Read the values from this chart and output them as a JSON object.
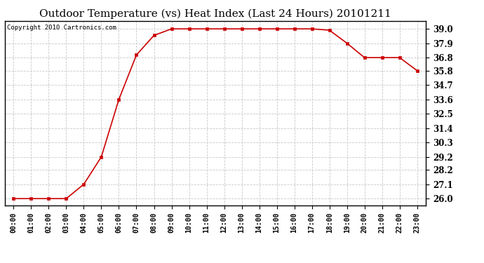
{
  "title": "Outdoor Temperature (vs) Heat Index (Last 24 Hours) 20101211",
  "copyright_text": "Copyright 2010 Cartronics.com",
  "x_labels": [
    "00:00",
    "01:00",
    "02:00",
    "03:00",
    "04:00",
    "05:00",
    "06:00",
    "07:00",
    "08:00",
    "09:00",
    "10:00",
    "11:00",
    "12:00",
    "13:00",
    "14:00",
    "15:00",
    "16:00",
    "17:00",
    "18:00",
    "19:00",
    "20:00",
    "21:00",
    "22:00",
    "23:00"
  ],
  "y_values": [
    26.0,
    26.0,
    26.0,
    26.0,
    27.1,
    29.2,
    33.6,
    37.0,
    38.5,
    39.0,
    39.0,
    39.0,
    39.0,
    39.0,
    39.0,
    39.0,
    39.0,
    39.0,
    38.9,
    37.9,
    36.8,
    36.8,
    36.8,
    35.8
  ],
  "y_ticks": [
    26.0,
    27.1,
    28.2,
    29.2,
    30.3,
    31.4,
    32.5,
    33.6,
    34.7,
    35.8,
    36.8,
    37.9,
    39.0
  ],
  "y_tick_labels": [
    "26.0",
    "27.1",
    "28.2",
    "29.2",
    "30.3",
    "31.4",
    "32.5",
    "33.6",
    "34.7",
    "35.8",
    "36.8",
    "37.9",
    "39.0"
  ],
  "ylim": [
    25.5,
    39.6
  ],
  "line_color": "#cc0000",
  "marker": "s",
  "marker_size": 3,
  "background_color": "#ffffff",
  "grid_color": "#c8c8c8",
  "title_fontsize": 11,
  "copyright_fontsize": 6.5,
  "tick_fontsize": 8.5,
  "xtick_fontsize": 7
}
